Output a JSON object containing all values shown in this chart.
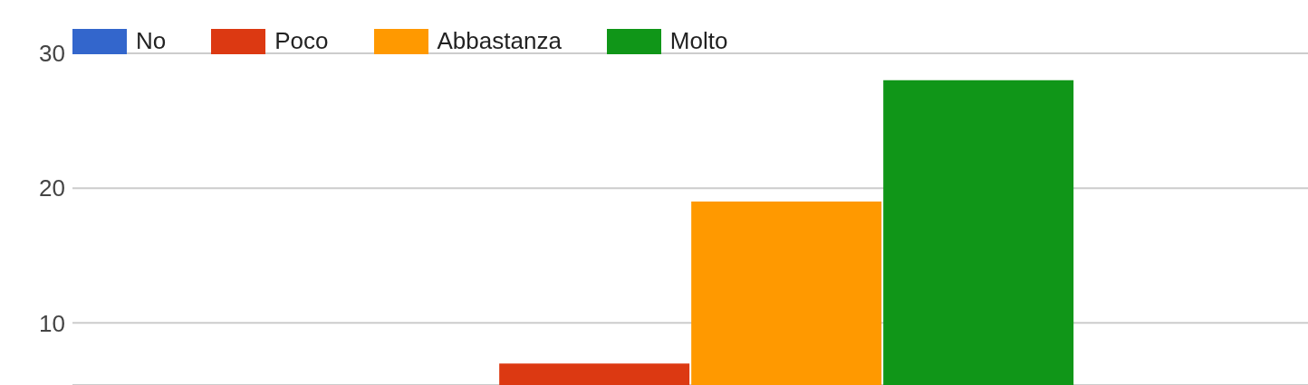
{
  "chart_data": {
    "type": "bar",
    "categories": [
      null
    ],
    "series": [
      {
        "name": "No",
        "color": "#3366cc",
        "values": [
          null
        ]
      },
      {
        "name": "Poco",
        "color": "#dc3912",
        "values": [
          7
        ]
      },
      {
        "name": "Abbastanza",
        "color": "#ff9900",
        "values": [
          19
        ]
      },
      {
        "name": "Molto",
        "color": "#109618",
        "values": [
          28
        ]
      }
    ],
    "ylim": [
      5.4,
      30
    ],
    "yticks": [
      10,
      20,
      30
    ],
    "grid": "y",
    "legend": "top left"
  }
}
